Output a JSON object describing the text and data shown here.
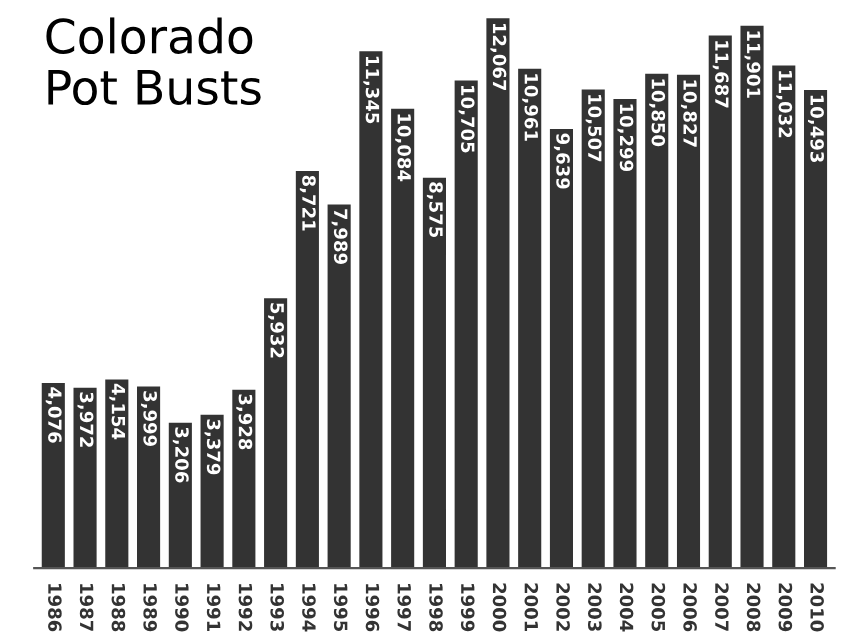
{
  "chart_data": {
    "type": "bar",
    "title": "Colorado\nPot Busts",
    "categories": [
      "1986",
      "1987",
      "1988",
      "1989",
      "1990",
      "1991",
      "1992",
      "1993",
      "1994",
      "1995",
      "1996",
      "1997",
      "1998",
      "1999",
      "2000",
      "2001",
      "2002",
      "2003",
      "2004",
      "2005",
      "2006",
      "2007",
      "2008",
      "2009",
      "2010"
    ],
    "values": [
      4076,
      3972,
      4154,
      3999,
      3206,
      3379,
      3928,
      5932,
      8721,
      7989,
      11345,
      10084,
      8575,
      10705,
      12067,
      10961,
      9639,
      10507,
      10299,
      10850,
      10827,
      11687,
      11901,
      11032,
      10493
    ],
    "value_labels": [
      "4,076",
      "3,972",
      "4,154",
      "3,999",
      "3,206",
      "3,379",
      "3,928",
      "5,932",
      "8,721",
      "7,989",
      "11,345",
      "10,084",
      "8,575",
      "10,705",
      "12,067",
      "10,961",
      "9,639",
      "10,507",
      "10,299",
      "10,850",
      "10,827",
      "11,687",
      "11,901",
      "11,032",
      "10,493"
    ],
    "color": "#333333",
    "grid": false,
    "legend": false
  }
}
